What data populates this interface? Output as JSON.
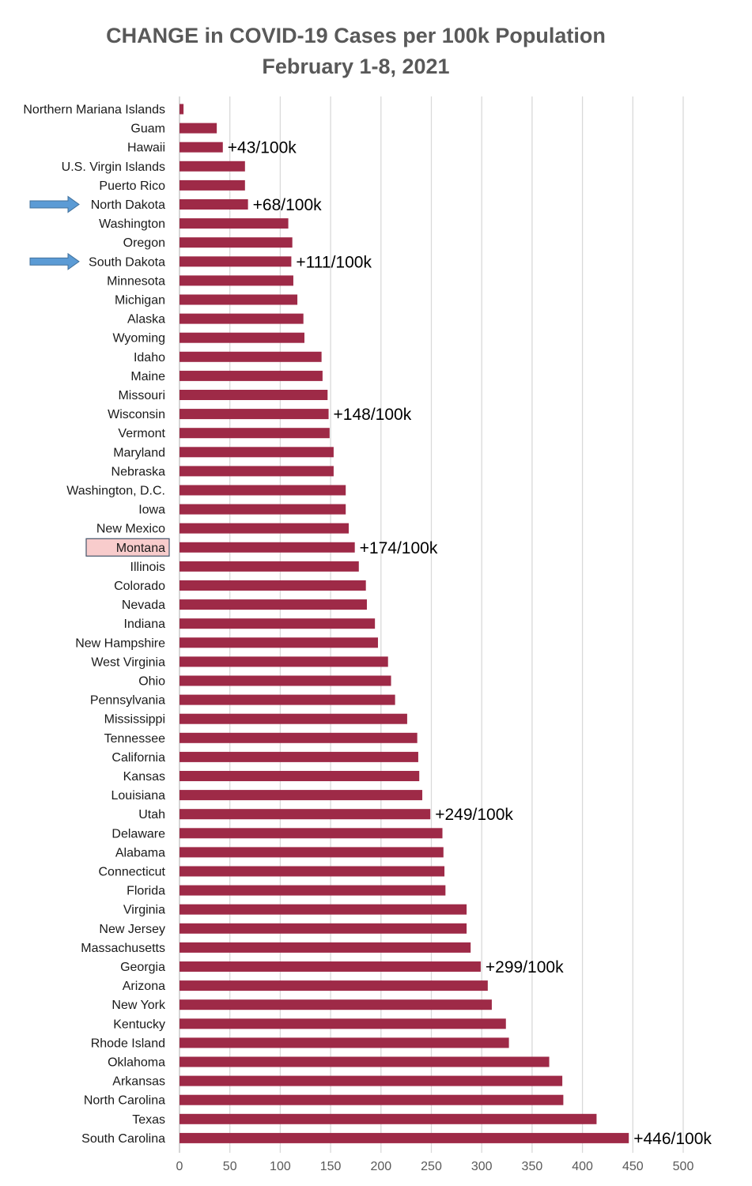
{
  "chart_data": {
    "type": "bar",
    "orientation": "horizontal",
    "title": "CHANGE in COVID-19 Cases per 100k Population",
    "subtitle": "February 1-8, 2021",
    "xlabel": "",
    "ylabel": "",
    "xlim": [
      0,
      500
    ],
    "xticks": [
      0,
      50,
      100,
      150,
      200,
      250,
      300,
      350,
      400,
      450,
      500
    ],
    "grid": "vertical",
    "categories": [
      "Northern Mariana Islands",
      "Guam",
      "Hawaii",
      "U.S. Virgin Islands",
      "Puerto Rico",
      "North Dakota",
      "Washington",
      "Oregon",
      "South Dakota",
      "Minnesota",
      "Michigan",
      "Alaska",
      "Wyoming",
      "Idaho",
      "Maine",
      "Missouri",
      "Wisconsin",
      "Vermont",
      "Maryland",
      "Nebraska",
      "Washington, D.C.",
      "Iowa",
      "New Mexico",
      "Montana",
      "Illinois",
      "Colorado",
      "Nevada",
      "Indiana",
      "New Hampshire",
      "West Virginia",
      "Ohio",
      "Pennsylvania",
      "Mississippi",
      "Tennessee",
      "California",
      "Kansas",
      "Louisiana",
      "Utah",
      "Delaware",
      "Alabama",
      "Connecticut",
      "Florida",
      "Virginia",
      "New Jersey",
      "Massachusetts",
      "Georgia",
      "Arizona",
      "New York",
      "Kentucky",
      "Rhode Island",
      "Oklahoma",
      "Arkansas",
      "North Carolina",
      "Texas",
      "South Carolina"
    ],
    "values": [
      4,
      37,
      43,
      65,
      65,
      68,
      108,
      112,
      111,
      113,
      117,
      123,
      124,
      141,
      142,
      147,
      148,
      149,
      153,
      153,
      165,
      165,
      168,
      174,
      178,
      185,
      186,
      194,
      197,
      207,
      210,
      214,
      226,
      236,
      237,
      238,
      241,
      249,
      261,
      262,
      263,
      264,
      285,
      285,
      289,
      299,
      306,
      310,
      324,
      327,
      367,
      380,
      381,
      414,
      446
    ],
    "bar_color": "#9e2a47",
    "annotations": [
      {
        "category": "Hawaii",
        "text": "+43/100k"
      },
      {
        "category": "North Dakota",
        "text": "+68/100k"
      },
      {
        "category": "South Dakota",
        "text": "+111/100k"
      },
      {
        "category": "Wisconsin",
        "text": "+148/100k"
      },
      {
        "category": "Montana",
        "text": "+174/100k"
      },
      {
        "category": "Utah",
        "text": "+249/100k"
      },
      {
        "category": "Georgia",
        "text": "+299/100k"
      },
      {
        "category": "South Carolina",
        "text": "+446/100k"
      }
    ],
    "arrow_markers": [
      "North Dakota",
      "South Dakota"
    ],
    "arrow_color": "#5b9bd5",
    "highlighted_category": "Montana",
    "highlight_fill": "#f8cccc",
    "highlight_border": "#44546a",
    "grid_color": "#d9d9d9",
    "axis_color": "#bfbfbf"
  }
}
